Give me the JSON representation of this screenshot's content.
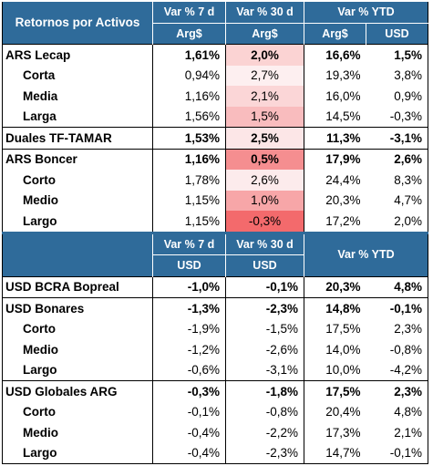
{
  "header1": {
    "title": "Retornos por Activos",
    "col_7d": "Var % 7 d",
    "col_30d": "Var % 30 d",
    "col_ytd": "Var % YTD",
    "cur_7d": "Arg$",
    "cur_30d": "Arg$",
    "cur_ytd_ars": "Arg$",
    "cur_ytd_usd": "USD"
  },
  "section1": [
    {
      "label": "ARS Lecap",
      "v7": "1,61%",
      "v30": "2,0%",
      "ytd_ars": "16,6%",
      "ytd_usd": "1,5%",
      "main": true,
      "heat": "#fbd3d3"
    },
    {
      "label": "Corta",
      "v7": "0,94%",
      "v30": "2,7%",
      "ytd_ars": "19,3%",
      "ytd_usd": "3,8%",
      "main": false,
      "heat": "#fdeff0"
    },
    {
      "label": "Media",
      "v7": "1,16%",
      "v30": "2,1%",
      "ytd_ars": "16,0%",
      "ytd_usd": "0,9%",
      "main": false,
      "heat": "#fbd6d7"
    },
    {
      "label": "Larga",
      "v7": "1,56%",
      "v30": "1,5%",
      "ytd_ars": "14,5%",
      "ytd_usd": "-0,3%",
      "main": false,
      "heat": "#f9bcbe"
    },
    {
      "label": "Duales TF-TAMAR",
      "v7": "1,53%",
      "v30": "2,5%",
      "ytd_ars": "11,3%",
      "ytd_usd": "-3,1%",
      "main": true,
      "heat": "#fce6e7"
    },
    {
      "label": "ARS Boncer",
      "v7": "1,16%",
      "v30": "0,5%",
      "ytd_ars": "17,9%",
      "ytd_usd": "2,6%",
      "main": true,
      "heat": "#f58e90"
    },
    {
      "label": "Corto",
      "v7": "1,78%",
      "v30": "2,6%",
      "ytd_ars": "24,4%",
      "ytd_usd": "8,3%",
      "main": false,
      "heat": "#fcebec"
    },
    {
      "label": "Medio",
      "v7": "1,15%",
      "v30": "1,0%",
      "ytd_ars": "20,3%",
      "ytd_usd": "4,7%",
      "main": false,
      "heat": "#f7a6a8"
    },
    {
      "label": "Largo",
      "v7": "1,15%",
      "v30": "-0,3%",
      "ytd_ars": "17,2%",
      "ytd_usd": "2,0%",
      "main": false,
      "heat": "#f36a6c"
    }
  ],
  "header2": {
    "col_7d": "Var % 7 d",
    "col_30d": "Var % 30 d",
    "col_ytd": "Var % YTD",
    "cur_7d": "USD",
    "cur_30d": "USD"
  },
  "section2": [
    {
      "label": "USD BCRA Bopreal",
      "v7": "-1,0%",
      "v30": "-0,1%",
      "ytd_ars": "20,3%",
      "ytd_usd": "4,8%",
      "main": true
    },
    {
      "label": "USD Bonares",
      "v7": "-1,3%",
      "v30": "-2,3%",
      "ytd_ars": "14,8%",
      "ytd_usd": "-0,1%",
      "main": true
    },
    {
      "label": "Corto",
      "v7": "-1,9%",
      "v30": "-1,5%",
      "ytd_ars": "17,5%",
      "ytd_usd": "2,3%",
      "main": false
    },
    {
      "label": "Medio",
      "v7": "-1,2%",
      "v30": "-2,6%",
      "ytd_ars": "14,0%",
      "ytd_usd": "-0,8%",
      "main": false
    },
    {
      "label": "Largo",
      "v7": "-0,6%",
      "v30": "-3,1%",
      "ytd_ars": "10,0%",
      "ytd_usd": "-4,2%",
      "main": false
    },
    {
      "label": "USD Globales ARG",
      "v7": "-0,3%",
      "v30": "-1,8%",
      "ytd_ars": "17,5%",
      "ytd_usd": "2,3%",
      "main": true
    },
    {
      "label": "Corto",
      "v7": "-0,1%",
      "v30": "-0,8%",
      "ytd_ars": "20,4%",
      "ytd_usd": "4,8%",
      "main": false
    },
    {
      "label": "Medio",
      "v7": "-0,4%",
      "v30": "-2,2%",
      "ytd_ars": "17,3%",
      "ytd_usd": "2,1%",
      "main": false
    },
    {
      "label": "Largo",
      "v7": "-0,4%",
      "v30": "-2,3%",
      "ytd_ars": "14,7%",
      "ytd_usd": "-0,1%",
      "main": false
    }
  ]
}
